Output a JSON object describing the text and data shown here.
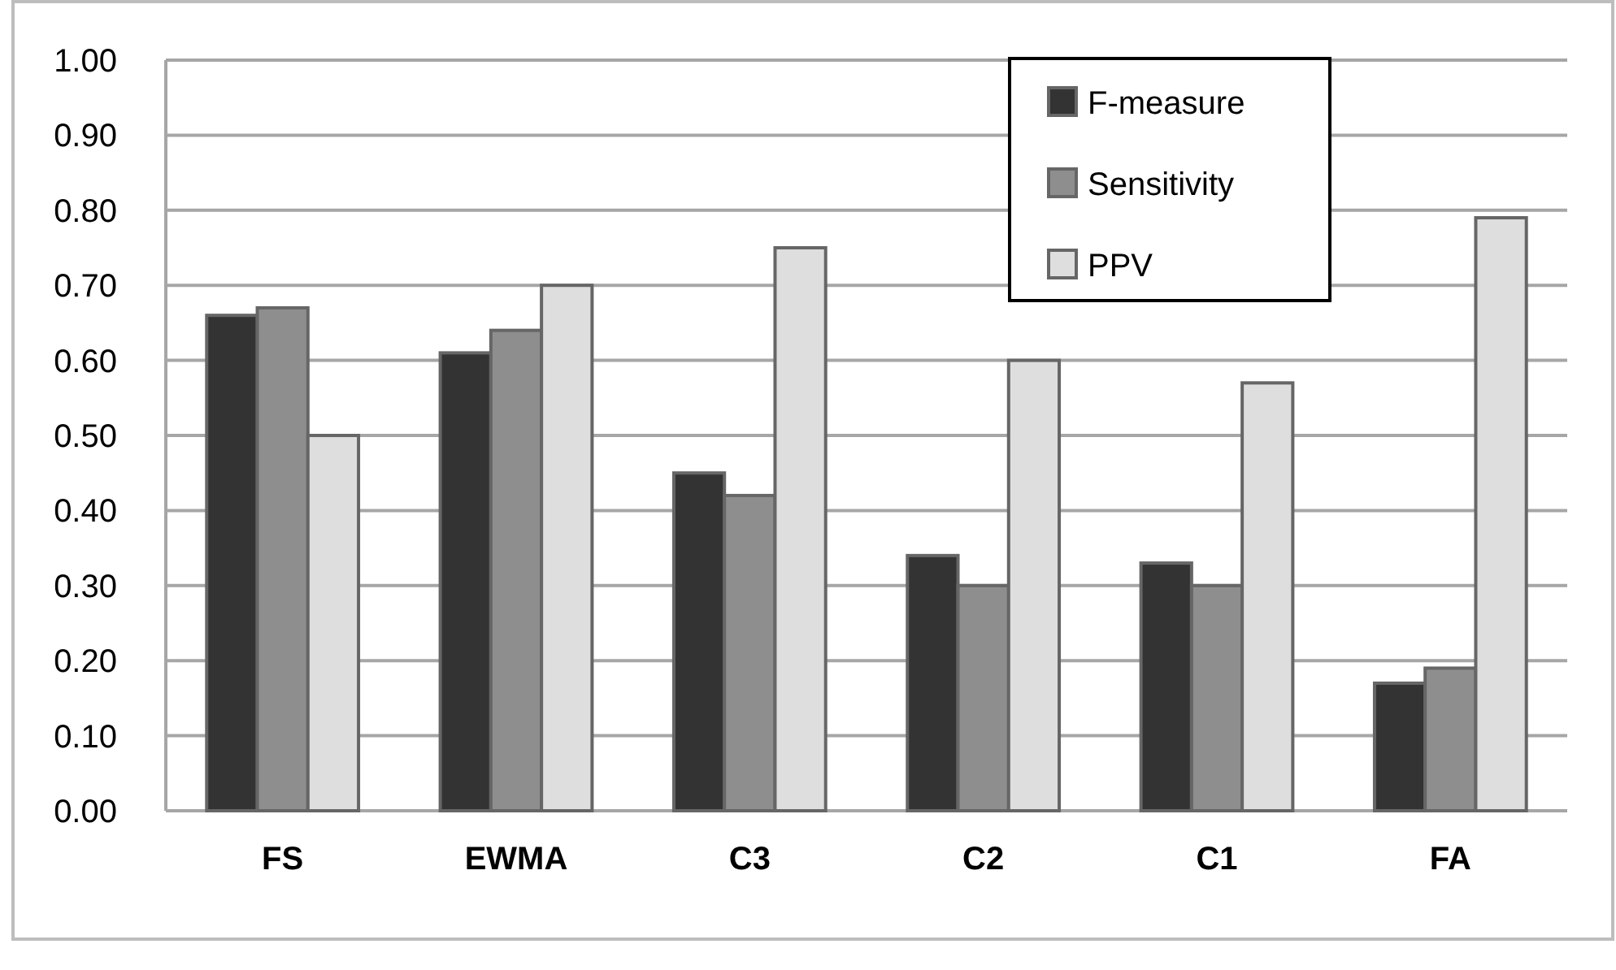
{
  "chart_data": {
    "type": "bar",
    "categories": [
      "FS",
      "EWMA",
      "C3",
      "C2",
      "C1",
      "FA"
    ],
    "series": [
      {
        "name": "F-measure",
        "color": "#333333",
        "values": [
          0.66,
          0.61,
          0.45,
          0.34,
          0.33,
          0.17
        ]
      },
      {
        "name": "Sensitivity",
        "color": "#8e8e8e",
        "values": [
          0.67,
          0.64,
          0.42,
          0.3,
          0.3,
          0.19
        ]
      },
      {
        "name": "PPV",
        "color": "#dedede",
        "values": [
          0.5,
          0.7,
          0.75,
          0.6,
          0.57,
          0.79
        ]
      }
    ],
    "ylim": [
      0,
      1
    ],
    "yticks": [
      {
        "value": 0,
        "label": "0.00"
      },
      {
        "value": 0.1,
        "label": "0.10"
      },
      {
        "value": 0.2,
        "label": "0.20"
      },
      {
        "value": 0.3,
        "label": "0.30"
      },
      {
        "value": 0.4,
        "label": "0.40"
      },
      {
        "value": 0.5,
        "label": "0.50"
      },
      {
        "value": 0.6,
        "label": "0.60"
      },
      {
        "value": 0.7,
        "label": "0.70"
      },
      {
        "value": 0.8,
        "label": "0.80"
      },
      {
        "value": 0.9,
        "label": "0.90"
      },
      {
        "value": 1,
        "label": "1.00"
      }
    ],
    "grid": "y",
    "legend": "top right"
  }
}
